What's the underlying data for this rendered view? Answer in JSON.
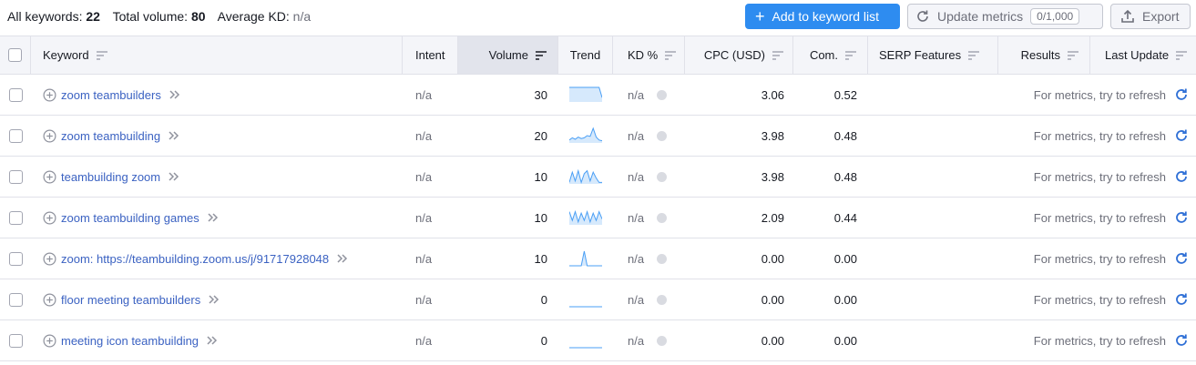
{
  "summary": {
    "all_keywords_label": "All keywords:",
    "all_keywords_value": "22",
    "total_volume_label": "Total volume:",
    "total_volume_value": "80",
    "avg_kd_label": "Average KD:",
    "avg_kd_value": "n/a"
  },
  "toolbar": {
    "add_label": "Add to keyword list",
    "update_label": "Update metrics",
    "update_badge": "0/1,000",
    "export_label": "Export"
  },
  "columns": {
    "keyword": "Keyword",
    "intent": "Intent",
    "volume": "Volume",
    "trend": "Trend",
    "kd": "KD %",
    "cpc": "CPC (USD)",
    "com": "Com.",
    "serp": "SERP Features",
    "results": "Results",
    "last_update": "Last Update"
  },
  "rows": [
    {
      "keyword": "zoom teambuilders",
      "intent": "n/a",
      "volume": "30",
      "trend": [
        1,
        1,
        1,
        1,
        1,
        1,
        1,
        1,
        1,
        1,
        1,
        0.3
      ],
      "kd": "n/a",
      "cpc": "3.06",
      "com": "0.52",
      "results": "For metrics, try to refresh"
    },
    {
      "keyword": "zoom teambuilding",
      "intent": "n/a",
      "volume": "20",
      "trend": [
        0.2,
        0.35,
        0.25,
        0.4,
        0.3,
        0.35,
        0.5,
        0.45,
        1,
        0.4,
        0.2,
        0.15
      ],
      "kd": "n/a",
      "cpc": "3.98",
      "com": "0.48",
      "results": "For metrics, try to refresh"
    },
    {
      "keyword": "teambuilding zoom",
      "intent": "n/a",
      "volume": "10",
      "trend": [
        0.1,
        0.8,
        0.2,
        0.9,
        0.1,
        0.7,
        0.9,
        0.2,
        0.8,
        0.4,
        0.1,
        0.1
      ],
      "kd": "n/a",
      "cpc": "3.98",
      "com": "0.48",
      "results": "For metrics, try to refresh"
    },
    {
      "keyword": "zoom teambuilding games",
      "intent": "n/a",
      "volume": "10",
      "trend": [
        0.9,
        0.3,
        0.9,
        0.2,
        0.8,
        0.3,
        0.9,
        0.2,
        0.8,
        0.3,
        0.9,
        0.4
      ],
      "kd": "n/a",
      "cpc": "2.09",
      "com": "0.44",
      "results": "For metrics, try to refresh"
    },
    {
      "keyword": "zoom: https://teambuilding.zoom.us/j/91717928048",
      "intent": "n/a",
      "volume": "10",
      "trend": [
        0,
        0,
        0,
        0,
        0,
        1,
        0,
        0,
        0,
        0,
        0,
        0
      ],
      "kd": "n/a",
      "cpc": "0.00",
      "com": "0.00",
      "results": "For metrics, try to refresh"
    },
    {
      "keyword": "floor meeting teambuilders",
      "intent": "n/a",
      "volume": "0",
      "trend": [
        0,
        0,
        0,
        0,
        0,
        0,
        0,
        0,
        0,
        0,
        0,
        0
      ],
      "kd": "n/a",
      "cpc": "0.00",
      "com": "0.00",
      "results": "For metrics, try to refresh"
    },
    {
      "keyword": "meeting icon teambuilding",
      "intent": "n/a",
      "volume": "0",
      "trend": [
        0,
        0,
        0,
        0,
        0,
        0,
        0,
        0,
        0,
        0,
        0,
        0
      ],
      "kd": "n/a",
      "cpc": "0.00",
      "com": "0.00",
      "results": "For metrics, try to refresh"
    }
  ],
  "colors": {
    "primary": "#2e8cf0",
    "link": "#3b62c2",
    "trend_line": "#4a9ff5",
    "trend_fill": "#d6e9fc"
  }
}
